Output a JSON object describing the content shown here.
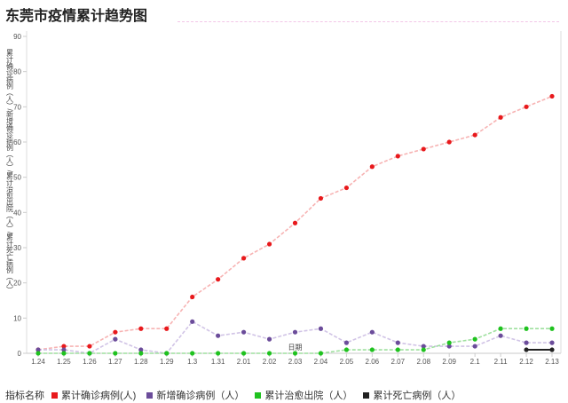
{
  "page": {
    "title": "东莞市疫情累计趋势图"
  },
  "legend": {
    "prefix": "指标名称"
  },
  "chart_data": {
    "type": "line",
    "title": "东莞市疫情累计趋势图",
    "xlabel": "日期",
    "ylabel": "累计确诊病例（人）/新增确诊病例（人）/累计治愈出院（人）/累计死亡病例（人）",
    "ylim": [
      0,
      90
    ],
    "yticks": [
      0,
      10,
      20,
      30,
      40,
      50,
      60,
      70,
      80,
      90
    ],
    "grid": false,
    "legend_position": "bottom",
    "x": [
      "1.24",
      "1.25",
      "1.26",
      "1.27",
      "1.28",
      "1.29",
      "1.3",
      "1.31",
      "2.01",
      "2.02",
      "2.03",
      "2.04",
      "2.05",
      "2.06",
      "2.07",
      "2.08",
      "2.09",
      "2.1",
      "2.11",
      "2.12",
      "2.13"
    ],
    "series": [
      {
        "name": "累计确诊病例(人)",
        "color": "#e8191c",
        "line_color": "#f7b3b3",
        "values": [
          1,
          2,
          2,
          6,
          7,
          7,
          16,
          21,
          27,
          31,
          37,
          44,
          47,
          53,
          56,
          58,
          60,
          62,
          67,
          70,
          73
        ]
      },
      {
        "name": "新增确诊病例（人）",
        "color": "#6b4c9a",
        "line_color": "#d1c4e6",
        "values": [
          1,
          1,
          0,
          4,
          1,
          0,
          9,
          5,
          6,
          4,
          6,
          7,
          3,
          6,
          3,
          2,
          2,
          2,
          5,
          3,
          3
        ]
      },
      {
        "name": "累计治愈出院（人）",
        "color": "#1fc21f",
        "line_color": "#9fe09f",
        "values": [
          0,
          0,
          0,
          0,
          0,
          0,
          0,
          0,
          0,
          0,
          0,
          0,
          1,
          1,
          1,
          1,
          3,
          4,
          7,
          7,
          7
        ]
      },
      {
        "name": "累计死亡病例（人）",
        "color": "#222222",
        "line_color": "#222222",
        "values": [
          null,
          null,
          null,
          null,
          null,
          null,
          null,
          null,
          null,
          null,
          null,
          null,
          null,
          null,
          null,
          null,
          null,
          null,
          null,
          1,
          1
        ]
      }
    ]
  }
}
